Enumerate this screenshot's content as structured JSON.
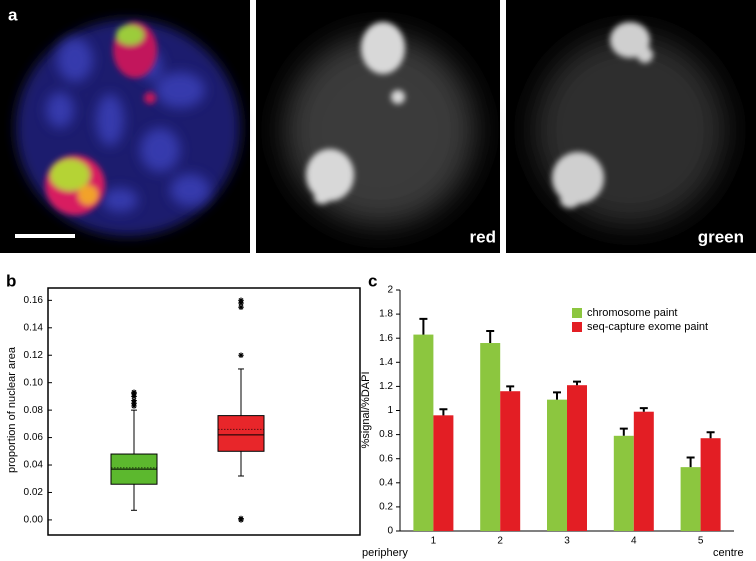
{
  "panel_labels": [
    "a",
    "b",
    "c"
  ],
  "image_labels": [
    "red",
    "green"
  ],
  "chart_data": [
    {
      "type": "box",
      "y_label": "proportion of nuclear area",
      "ylim": [
        -0.011,
        0.169
      ],
      "yticks": [
        {
          "value": 0,
          "label": "0.00"
        },
        0.02,
        0.04,
        0.06,
        0.08,
        {
          "value": 0.1,
          "label": "0.10"
        },
        0.12,
        0.14,
        0.16
      ],
      "boxes": [
        {
          "color": "#5cb82e",
          "whislo": 0.007,
          "q1": 0.026,
          "med": 0.037,
          "mean": 0.038,
          "q3": 0.048,
          "whishi": 0.08,
          "fliers": [
            0.083,
            0.085,
            0.087,
            0.09,
            0.092,
            0.093
          ]
        },
        {
          "color": "#e8262a",
          "whislo": 0.032,
          "q1": 0.05,
          "med": 0.062,
          "mean": 0.066,
          "q3": 0.076,
          "whishi": 0.11,
          "fliers": [
            0.0,
            0.001,
            0.12,
            0.155,
            0.158,
            0.16
          ]
        }
      ]
    },
    {
      "type": "bar",
      "y_label": "%signal/%DAPI",
      "x_start_label": "periphery",
      "x_end_label": "centre",
      "categories": [
        "1",
        "2",
        "3",
        "4",
        "5"
      ],
      "ylim": [
        0,
        2
      ],
      "yticks": [
        0,
        0.2,
        0.4,
        0.6,
        0.8,
        1,
        1.2,
        1.4,
        1.6,
        1.8,
        2
      ],
      "legend": "top-right",
      "series": [
        {
          "name": "chromosome paint",
          "color": "#8cc63f",
          "values": [
            1.63,
            1.56,
            1.09,
            0.79,
            0.53
          ],
          "errors": [
            0.13,
            0.1,
            0.06,
            0.06,
            0.08
          ]
        },
        {
          "name": "seq-capture exome paint",
          "color": "#e31e24",
          "values": [
            0.96,
            1.16,
            1.21,
            0.99,
            0.77
          ],
          "errors": [
            0.05,
            0.04,
            0.03,
            0.03,
            0.05
          ]
        }
      ]
    }
  ]
}
